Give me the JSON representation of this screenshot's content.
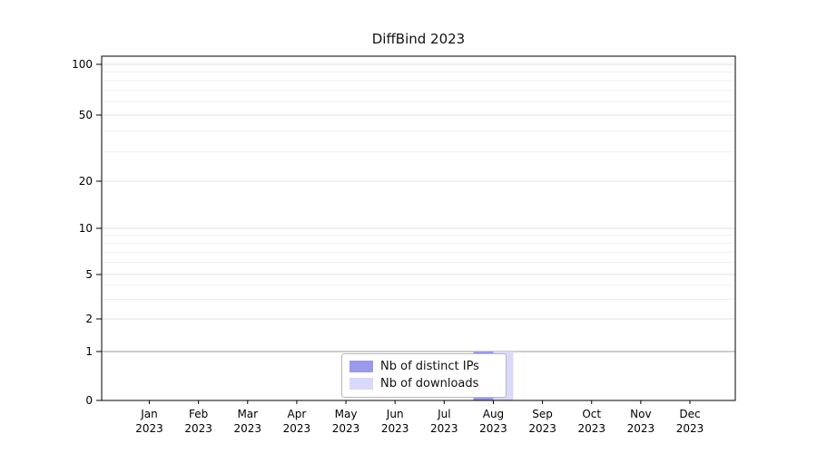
{
  "chart_data": {
    "type": "bar",
    "title": "DiffBind 2023",
    "categories": [
      "Jan",
      "Feb",
      "Mar",
      "Apr",
      "May",
      "Jun",
      "Jul",
      "Aug",
      "Sep",
      "Oct",
      "Nov",
      "Dec"
    ],
    "x_year_label": "2023",
    "series": [
      {
        "name": "Nb of distinct IPs",
        "color": "#9999ee",
        "values": [
          0,
          0,
          0,
          0,
          0,
          0,
          0,
          1,
          0,
          0,
          0,
          0
        ]
      },
      {
        "name": "Nb of downloads",
        "color": "#d9d9fa",
        "values": [
          0,
          0,
          0,
          0,
          0,
          0,
          0,
          1,
          0,
          0,
          0,
          0
        ]
      }
    ],
    "yticks": [
      0,
      1,
      2,
      5,
      10,
      20,
      50,
      100
    ],
    "ylim": [
      0,
      100
    ],
    "yscale": "log-like",
    "grid": true,
    "legend_position": "bottom-center",
    "colors": {
      "grid_major": "#e2e2e2",
      "grid_minor": "#efefef",
      "grid_baseline_one": "#9e9e9e",
      "axis": "#000000"
    }
  }
}
